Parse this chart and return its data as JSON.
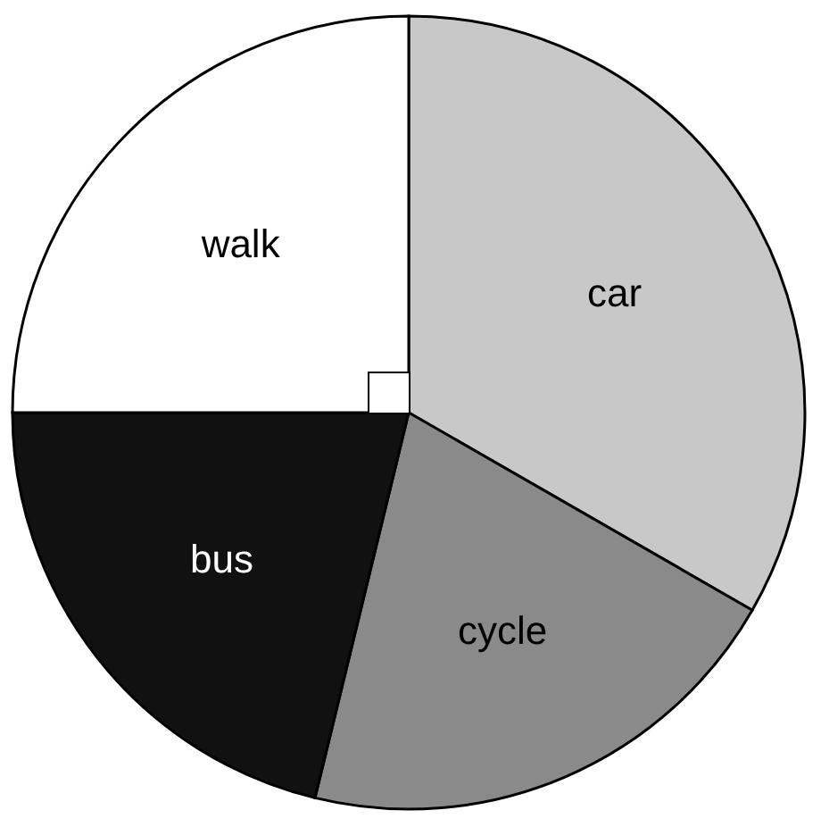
{
  "chart_data": {
    "type": "pie",
    "categories": [
      "car",
      "cycle",
      "bus",
      "walk"
    ],
    "values": [
      33.3,
      20.5,
      21.2,
      25
    ],
    "colors": [
      "#c8c8c8",
      "#8a8a8a",
      "#111111",
      "#ffffff"
    ]
  }
}
